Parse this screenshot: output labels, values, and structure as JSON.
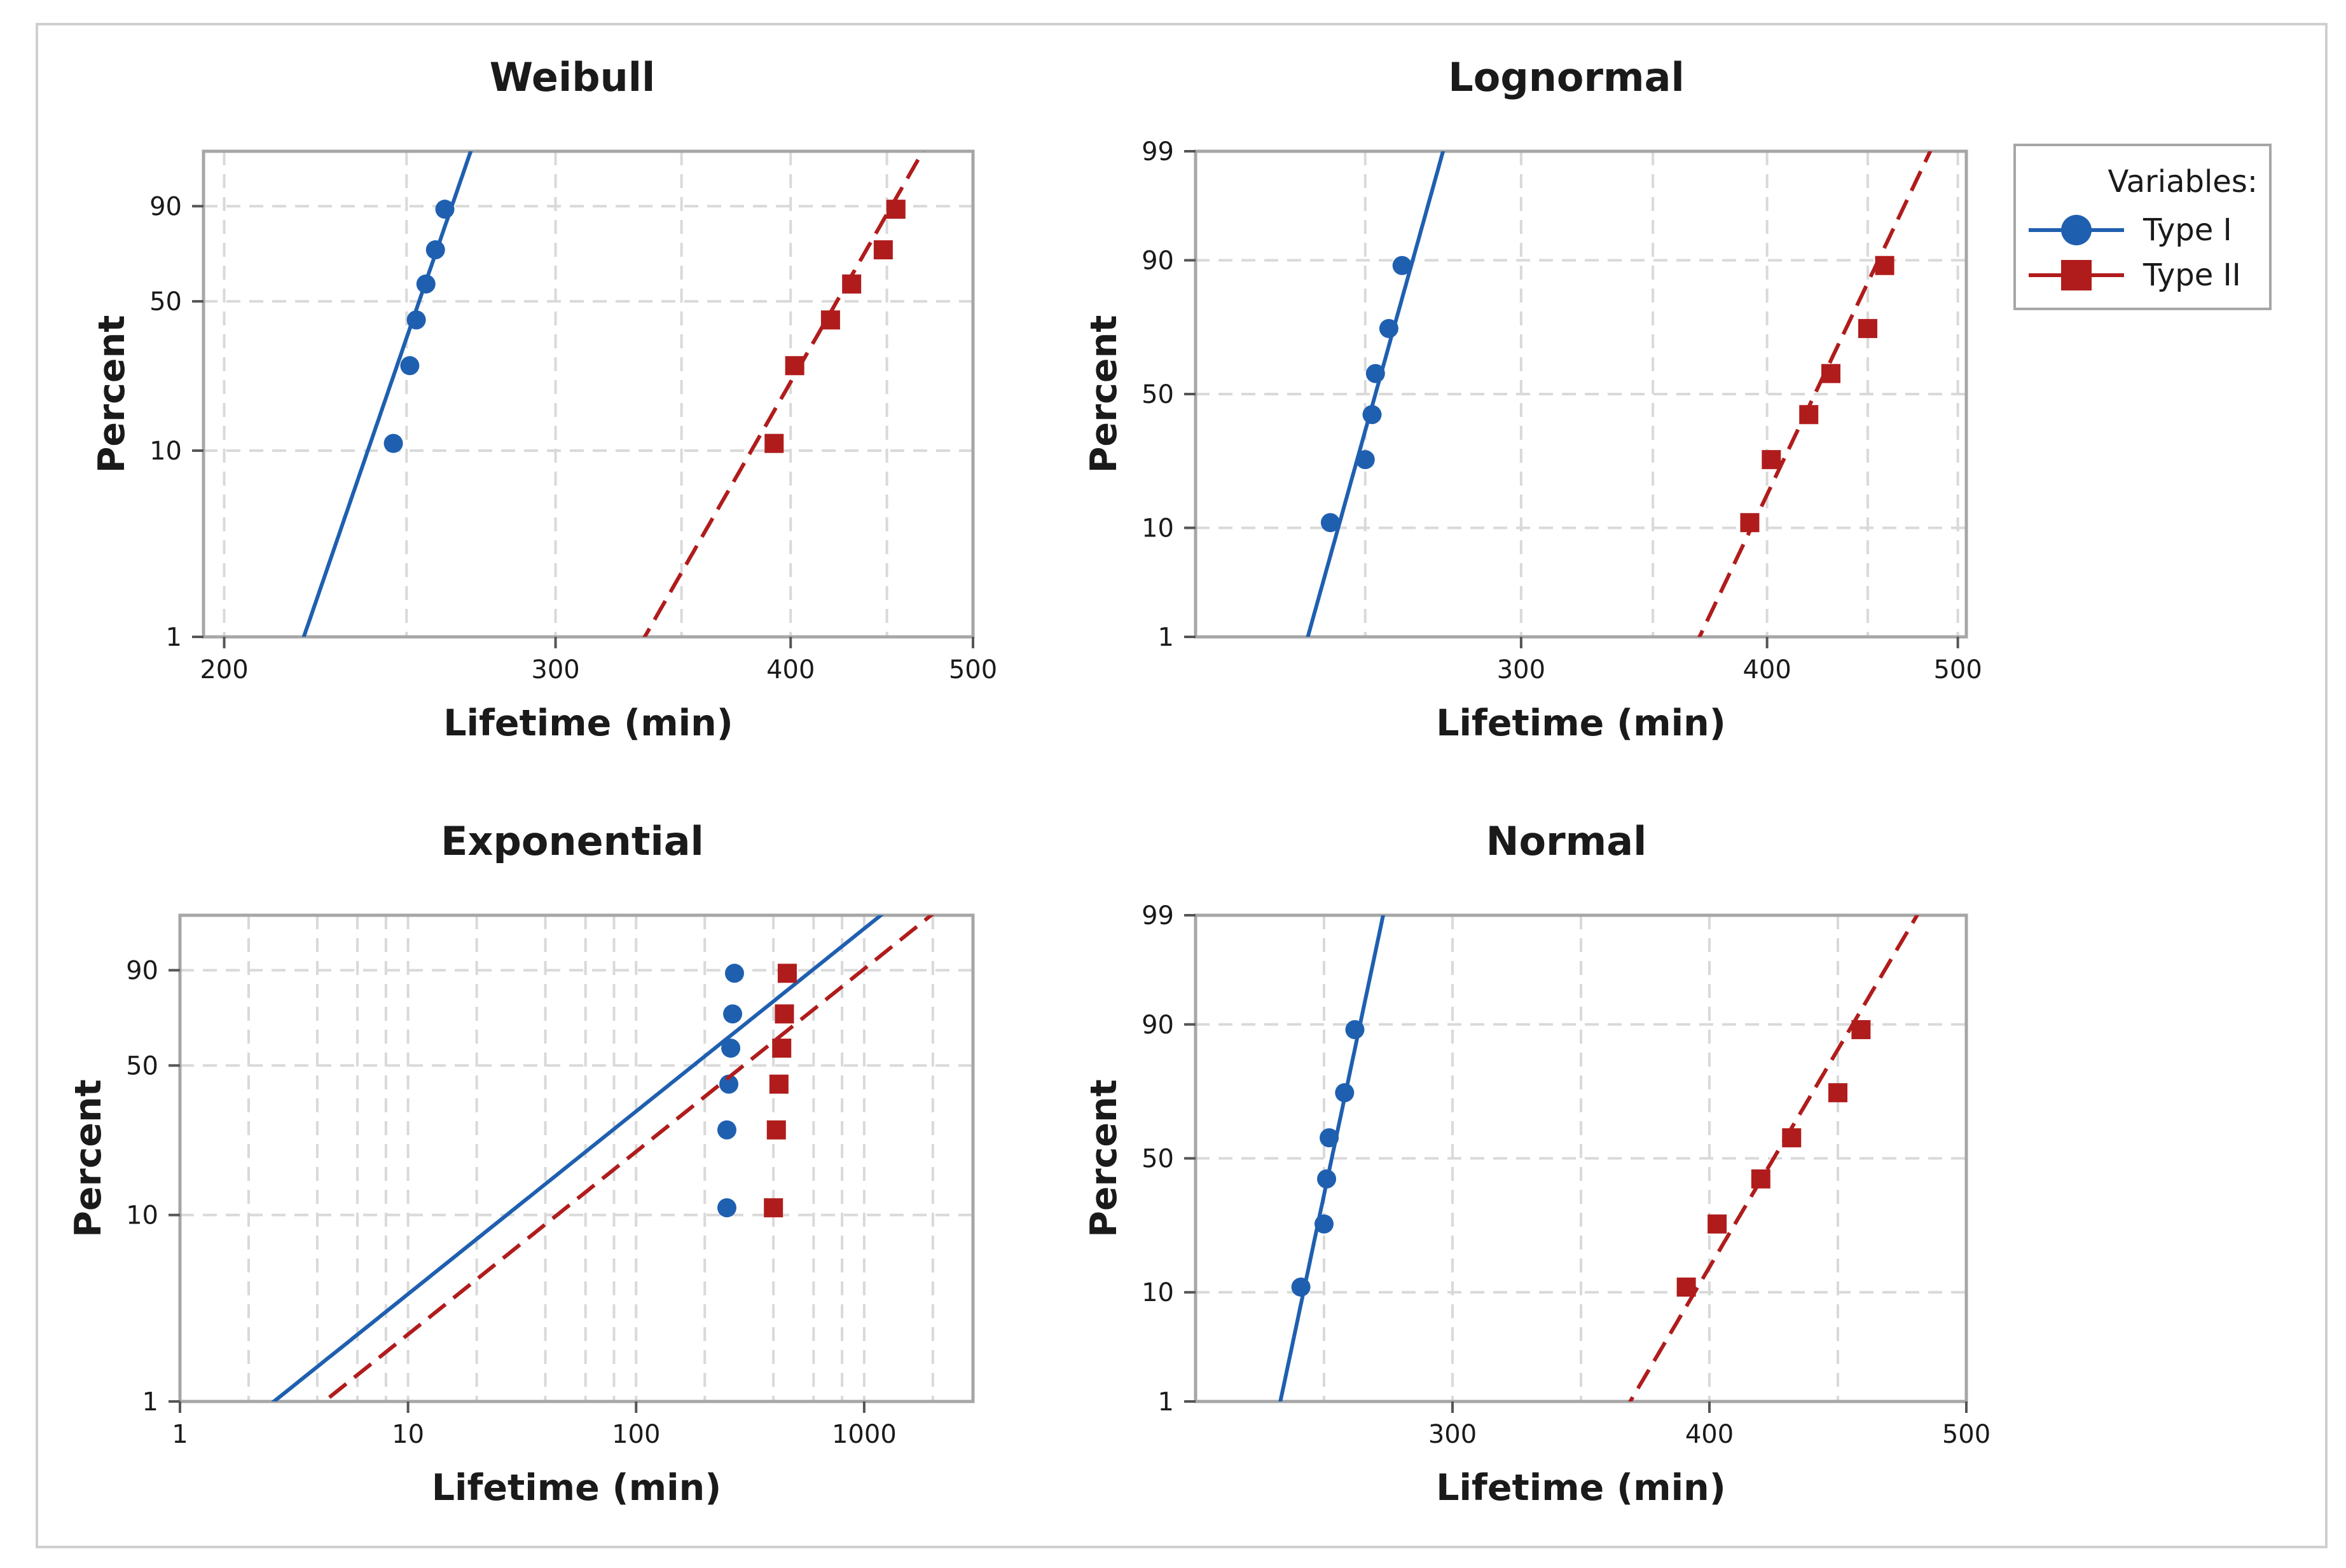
{
  "legend": {
    "title": "Variables:",
    "items": [
      {
        "name": "Type I",
        "color": "#1f5fb0",
        "marker": "circle",
        "line": "solid"
      },
      {
        "name": "Type II",
        "color": "#b01c1c",
        "marker": "square",
        "line": "dashed"
      }
    ]
  },
  "chart_data": [
    {
      "type": "scatter",
      "title": "Weibull",
      "xlabel": "Lifetime (min)",
      "ylabel": "Percent",
      "xscale": "log",
      "yscale": "weibull",
      "xlim": [
        195,
        500
      ],
      "ylim": [
        1,
        99
      ],
      "xticks": [
        200,
        300,
        400,
        500
      ],
      "xtick_labels": [
        "200",
        "300",
        "400",
        "500"
      ],
      "xgrid": [
        200,
        250,
        300,
        350,
        400,
        450,
        500
      ],
      "yticks": [
        1,
        10,
        50,
        90
      ],
      "ytick_labels": [
        "1",
        "10",
        "50",
        "90"
      ],
      "series": [
        {
          "name": "Type I",
          "x": [
            246,
            251,
            253,
            256,
            259,
            262
          ],
          "y": [
            10.9,
            26.5,
            42.2,
            57.8,
            73.5,
            89.1
          ],
          "fit": {
            "dist": "weibull",
            "shape": 30,
            "scale": 257
          }
        },
        {
          "name": "Type II",
          "x": [
            392,
            402,
            420,
            431,
            448,
            455
          ],
          "y": [
            10.9,
            26.5,
            42.2,
            57.8,
            73.5,
            89.1
          ],
          "fit": {
            "dist": "weibull",
            "shape": 18,
            "scale": 432
          }
        }
      ]
    },
    {
      "type": "scatter",
      "title": "Lognormal",
      "xlabel": "Lifetime (min)",
      "ylabel": "Percent",
      "xscale": "log",
      "yscale": "normal",
      "xlim": [
        205,
        505
      ],
      "ylim": [
        1,
        99
      ],
      "xticks": [
        300,
        400,
        500
      ],
      "xtick_labels": [
        "300",
        "400",
        "500"
      ],
      "xgrid": [
        250,
        300,
        350,
        400,
        450,
        500
      ],
      "yticks": [
        1,
        10,
        50,
        90,
        99
      ],
      "ytick_labels": [
        "1",
        "10",
        "50",
        "90",
        "99"
      ],
      "series": [
        {
          "name": "Type I",
          "x": [
            240,
            250,
            252,
            253,
            257,
            261
          ],
          "y": [
            10.9,
            26.5,
            42.2,
            57.8,
            73.5,
            89.1
          ],
          "fit": {
            "dist": "lognormal",
            "mu": 253,
            "sigma": 0.034
          }
        },
        {
          "name": "Type II",
          "x": [
            392,
            402,
            420,
            431,
            450,
            459
          ],
          "y": [
            10.9,
            26.5,
            42.2,
            57.8,
            73.5,
            89.1
          ],
          "fit": {
            "dist": "lognormal",
            "mu": 423,
            "sigma": 0.058
          }
        }
      ]
    },
    {
      "type": "scatter",
      "title": "Exponential",
      "xlabel": "Lifetime (min)",
      "ylabel": "Percent",
      "xscale": "log",
      "yscale": "weibull",
      "xlim": [
        1,
        3000
      ],
      "ylim": [
        1,
        99
      ],
      "xticks": [
        1,
        10,
        100,
        1000
      ],
      "xtick_labels": [
        "1",
        "10",
        "100",
        "1000"
      ],
      "xgrid": [
        2,
        4,
        6,
        8,
        10,
        20,
        40,
        60,
        80,
        100,
        200,
        400,
        600,
        800,
        1000,
        2000
      ],
      "yticks": [
        1,
        10,
        50,
        90
      ],
      "ytick_labels": [
        "1",
        "10",
        "50",
        "90"
      ],
      "series": [
        {
          "name": "Type I",
          "x": [
            250,
            250,
            255,
            260,
            265,
            270
          ],
          "y": [
            10.9,
            26.5,
            42.2,
            57.8,
            73.5,
            89.1
          ],
          "fit": {
            "dist": "exponential",
            "mean": 257
          }
        },
        {
          "name": "Type II",
          "x": [
            400,
            412,
            423,
            435,
            447,
            460
          ],
          "y": [
            10.9,
            26.5,
            42.2,
            57.8,
            73.5,
            89.1
          ],
          "fit": {
            "dist": "exponential",
            "mean": 427
          }
        }
      ]
    },
    {
      "type": "scatter",
      "title": "Normal",
      "xlabel": "Lifetime (min)",
      "ylabel": "Percent",
      "xscale": "linear",
      "yscale": "normal",
      "xlim": [
        200,
        500
      ],
      "ylim": [
        1,
        99
      ],
      "xticks": [
        300,
        400,
        500
      ],
      "xtick_labels": [
        "300",
        "400",
        "500"
      ],
      "xgrid": [
        250,
        300,
        350,
        400,
        450,
        500
      ],
      "yticks": [
        1,
        10,
        50,
        90,
        99
      ],
      "ytick_labels": [
        "1",
        "10",
        "50",
        "90",
        "99"
      ],
      "series": [
        {
          "name": "Type I",
          "x": [
            241,
            250,
            251,
            252,
            258,
            262
          ],
          "y": [
            10.9,
            26.5,
            42.2,
            57.8,
            73.5,
            89.1
          ],
          "fit": {
            "dist": "normal",
            "mu": 253,
            "sigma": 8.6
          }
        },
        {
          "name": "Type II",
          "x": [
            391,
            403,
            420,
            432,
            450,
            459
          ],
          "y": [
            10.9,
            26.5,
            42.2,
            57.8,
            73.5,
            89.1
          ],
          "fit": {
            "dist": "normal",
            "mu": 425,
            "sigma": 24
          }
        }
      ]
    }
  ]
}
